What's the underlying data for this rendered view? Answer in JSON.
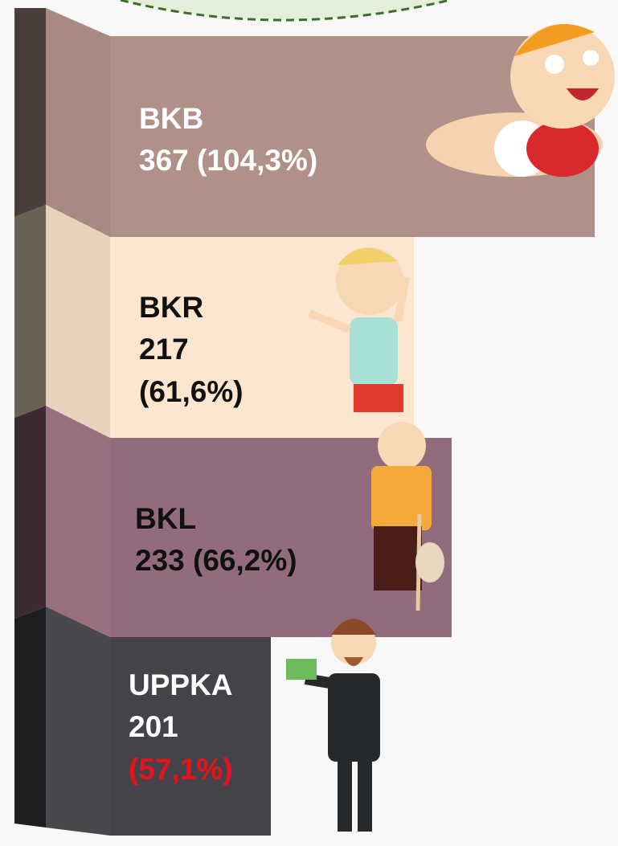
{
  "items": [
    {
      "name": "BKB",
      "value": "367",
      "percent": "(104,3%)"
    },
    {
      "name": "BKR",
      "value": "217",
      "percent": "(61,6%)"
    },
    {
      "name": "BKL",
      "value": "233",
      "percent": "(66,2%)"
    },
    {
      "name": "UPPKA",
      "value": "201",
      "percent": "(57,1%)"
    }
  ]
}
